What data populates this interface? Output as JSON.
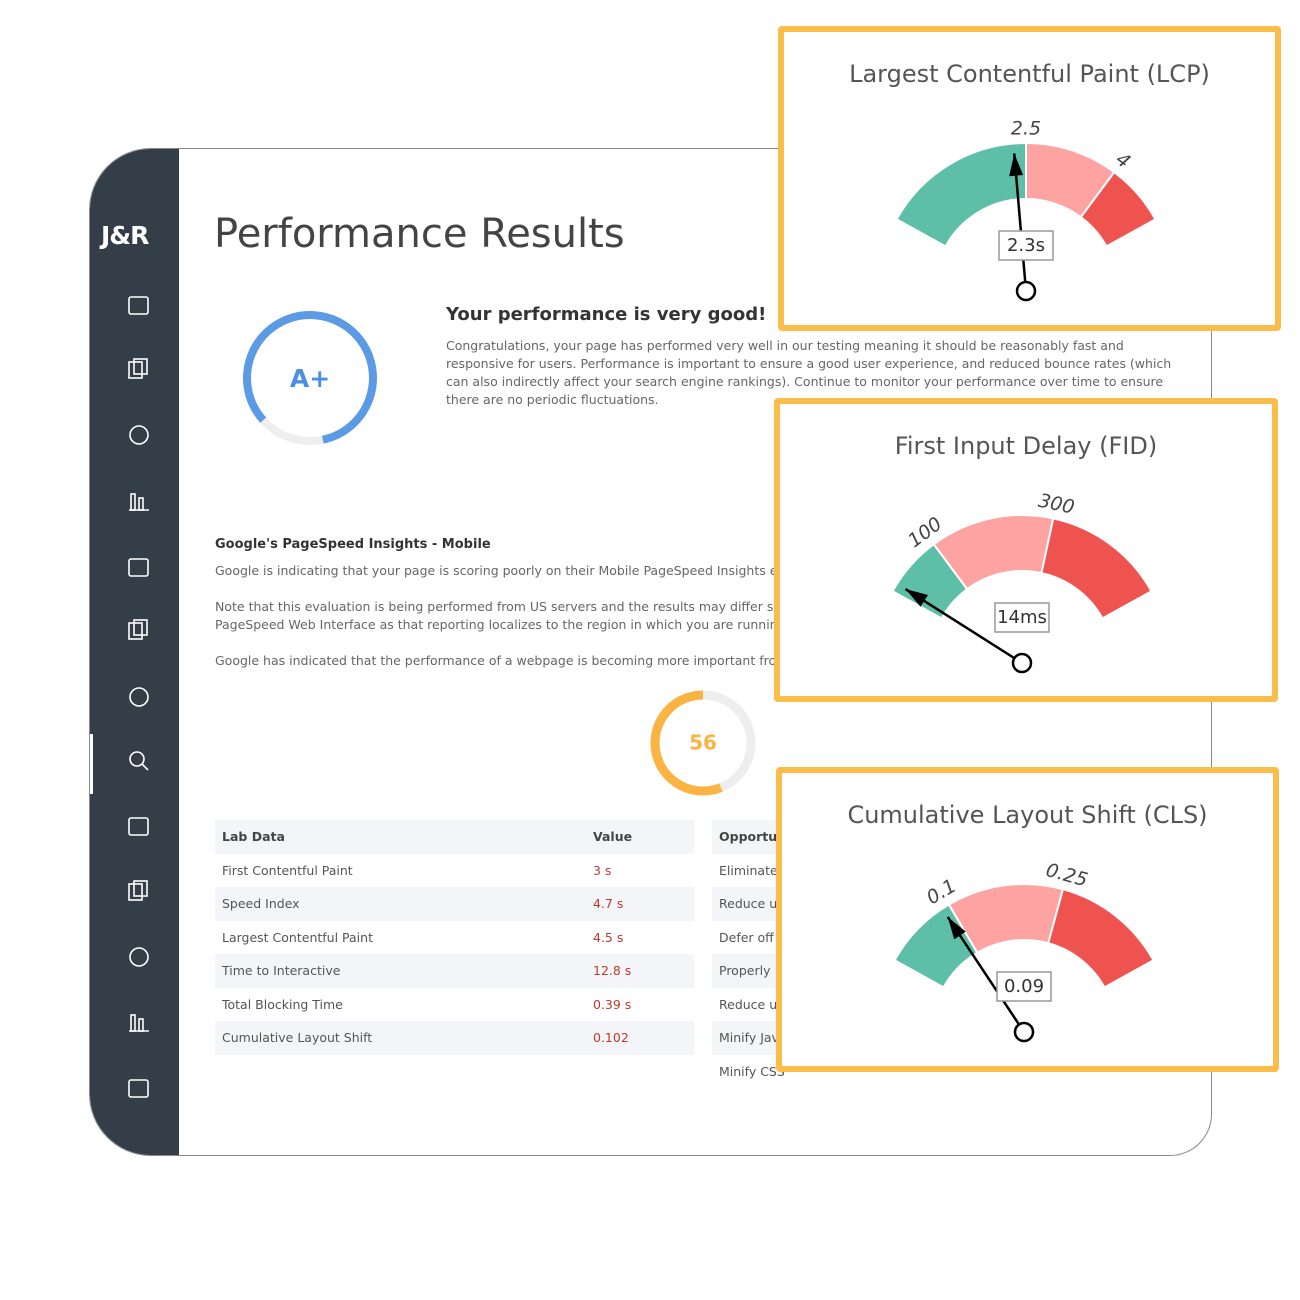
{
  "sidebar": {
    "logo": "J&R"
  },
  "header": {
    "title": "Performance Results"
  },
  "summary": {
    "grade": "A+",
    "heading": "Your performance is very good!",
    "text": "Congratulations, your page has performed very well in our testing meaning it should be reasonably fast and responsive for users. Performance is important to ensure a good user experience, and reduced bounce rates (which can also indirectly affect your search engine rankings). Continue to monitor your performance over time to ensure there are no periodic fluctuations."
  },
  "pagespeed": {
    "heading": "Google's PageSpeed Insights - Mobile",
    "paragraphs": [
      [
        "Google is indicating that your page is scoring poorly on their Mobile PageSpeed Insights evalu"
      ],
      [
        "Note that this evaluation is being performed from US servers and the results may differ slightl",
        "PageSpeed Web Interface as that reporting localizes to the region in which you are running th"
      ],
      [
        "Google has indicated that the performance of a webpage is becoming more important from a"
      ]
    ]
  },
  "lab_table": {
    "header": [
      "Lab Data",
      "Value"
    ],
    "rows": [
      [
        "First Contentful Paint",
        "3 s"
      ],
      [
        "Speed Index",
        "4.7 s"
      ],
      [
        "Largest Contentful Paint",
        "4.5 s"
      ],
      [
        "Time to Interactive",
        "12.8 s"
      ],
      [
        "Total Blocking Time",
        "0.39 s"
      ],
      [
        "Cumulative Layout Shift",
        "0.102"
      ]
    ]
  },
  "opportunities_table": {
    "header": [
      "Opportu"
    ],
    "rows": [
      [
        "Eliminate"
      ],
      [
        "Reduce u"
      ],
      [
        "Defer off"
      ],
      [
        "Properly"
      ],
      [
        "Reduce u"
      ],
      [
        "Minify Jav"
      ],
      [
        "Minify CSS"
      ]
    ]
  },
  "chart_data": [
    {
      "type": "gauge",
      "title": "Largest Contentful Paint (LCP)",
      "values": [
        2.3
      ],
      "value_labels": [
        "2.3s"
      ],
      "ylim": [
        0,
        5
      ],
      "yticks": [
        2.5,
        4
      ],
      "colors": [
        "#5ebfa9",
        "#fda4a3",
        "#ef5350"
      ]
    },
    {
      "type": "gauge",
      "title": "First Input Delay (FID)",
      "values": [
        14
      ],
      "value_labels": [
        "14ms"
      ],
      "ylim": [
        0,
        500
      ],
      "yticks": [
        100,
        300
      ],
      "colors": [
        "#5ebfa9",
        "#fda4a3",
        "#ef5350"
      ]
    },
    {
      "type": "gauge",
      "title": "Cumulative Layout Shift (CLS)",
      "values": [
        0.09
      ],
      "ylim": [
        0,
        0.4
      ],
      "yticks": [
        0.1,
        0.25
      ],
      "colors": [
        "#5ebfa9",
        "#fda4a3",
        "#ef5350"
      ]
    },
    {
      "type": "radial",
      "values": [
        56
      ],
      "ylim": [
        0,
        100
      ],
      "color": "#fbb443"
    }
  ]
}
